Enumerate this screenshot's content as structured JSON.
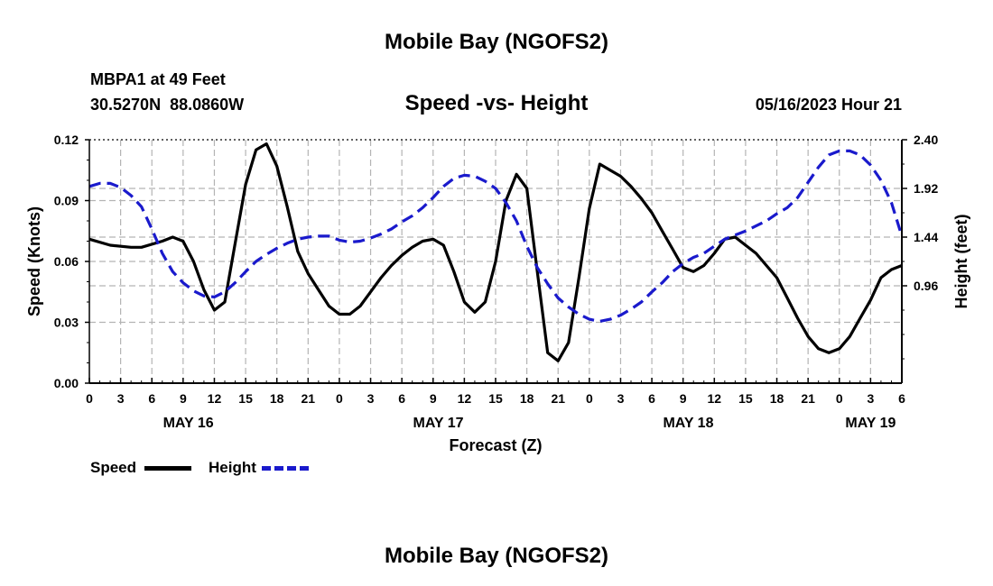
{
  "page": {
    "title": "Mobile Bay (NGOFS2)",
    "footer_title": "Mobile Bay (NGOFS2)",
    "station_line": "MBPA1 at 49 Feet",
    "coords_line": "30.5270N  88.0860W",
    "chart_subtitle": "Speed -vs- Height",
    "timestamp": "05/16/2023 Hour 21"
  },
  "legend": {
    "speed_label": "Speed",
    "height_label": "Height"
  },
  "colors": {
    "speed": "#000000",
    "height": "#1a1acc",
    "grid": "#b4b4b4"
  },
  "chart_data": {
    "type": "line",
    "title": "Speed -vs- Height",
    "xlabel": "Forecast (Z)",
    "ylabel": "Speed (Knots)",
    "y2label": "Height (feet)",
    "xlim": [
      0,
      78
    ],
    "ylim": [
      0,
      0.12
    ],
    "y2lim": [
      0,
      2.4
    ],
    "x_tick_labels": [
      "0",
      "3",
      "6",
      "9",
      "12",
      "15",
      "18",
      "21",
      "0",
      "3",
      "6",
      "9",
      "12",
      "15",
      "18",
      "21",
      "0",
      "3",
      "6",
      "9",
      "12",
      "15",
      "18",
      "21",
      "0",
      "3",
      "6"
    ],
    "day_labels": [
      {
        "label": "MAY 16",
        "x": 9.5
      },
      {
        "label": "MAY 17",
        "x": 33.5
      },
      {
        "label": "MAY 18",
        "x": 57.5
      },
      {
        "label": "MAY 19",
        "x": 75
      }
    ],
    "y_ticks": [
      "0.00",
      "0.03",
      "0.06",
      "0.09",
      "0.12"
    ],
    "y2_ticks": [
      "0.96",
      "1.44",
      "1.92",
      "2.40"
    ],
    "grid": true,
    "legend_position": "bottom-left",
    "series": [
      {
        "name": "Speed",
        "axis": "left",
        "style": "solid",
        "x": [
          0,
          2,
          4,
          5,
          7,
          8,
          9,
          10,
          11,
          12,
          13,
          14,
          15,
          16,
          17,
          18,
          19,
          20,
          21,
          22,
          23,
          24,
          25,
          26,
          27,
          28,
          29,
          30,
          31,
          32,
          33,
          34,
          35,
          36,
          37,
          38,
          39,
          40,
          41,
          42,
          43,
          44,
          45,
          46,
          47,
          48,
          49,
          50,
          51,
          52,
          53,
          54,
          55,
          56,
          57,
          58,
          59,
          60,
          61,
          62,
          63,
          64,
          65,
          66,
          67,
          68,
          69,
          70,
          71,
          72,
          73,
          74,
          75,
          76,
          77,
          78
        ],
        "values": [
          0.071,
          0.068,
          0.067,
          0.067,
          0.07,
          0.072,
          0.07,
          0.06,
          0.046,
          0.036,
          0.04,
          0.069,
          0.098,
          0.115,
          0.118,
          0.107,
          0.087,
          0.065,
          0.054,
          0.046,
          0.038,
          0.034,
          0.034,
          0.038,
          0.045,
          0.052,
          0.058,
          0.063,
          0.067,
          0.07,
          0.071,
          0.068,
          0.055,
          0.04,
          0.035,
          0.04,
          0.06,
          0.09,
          0.103,
          0.096,
          0.055,
          0.015,
          0.011,
          0.02,
          0.052,
          0.086,
          0.108,
          0.105,
          0.102,
          0.097,
          0.091,
          0.084,
          0.075,
          0.066,
          0.057,
          0.055,
          0.058,
          0.064,
          0.071,
          0.072,
          0.068,
          0.064,
          0.058,
          0.052,
          0.042,
          0.032,
          0.023,
          0.017,
          0.015,
          0.017,
          0.023,
          0.032,
          0.041,
          0.052,
          0.056,
          0.058
        ]
      },
      {
        "name": "Height",
        "axis": "right",
        "style": "dashed",
        "x": [
          0,
          1,
          2,
          3,
          4,
          5,
          6,
          7,
          8,
          9,
          10,
          11,
          12,
          13,
          14,
          15,
          16,
          17,
          18,
          19,
          20,
          21,
          22,
          23,
          24,
          25,
          26,
          27,
          28,
          29,
          30,
          31,
          32,
          33,
          34,
          35,
          36,
          37,
          38,
          39,
          40,
          41,
          42,
          43,
          44,
          45,
          46,
          47,
          48,
          49,
          50,
          51,
          52,
          53,
          54,
          55,
          56,
          57,
          58,
          59,
          60,
          61,
          62,
          63,
          64,
          65,
          66,
          67,
          68,
          69,
          70,
          71,
          72,
          73,
          74,
          75,
          76,
          77,
          78
        ],
        "values": [
          1.94,
          1.97,
          1.97,
          1.93,
          1.85,
          1.74,
          1.52,
          1.28,
          1.1,
          0.99,
          0.91,
          0.86,
          0.85,
          0.9,
          0.99,
          1.1,
          1.2,
          1.27,
          1.33,
          1.38,
          1.42,
          1.44,
          1.45,
          1.45,
          1.41,
          1.39,
          1.4,
          1.43,
          1.47,
          1.52,
          1.59,
          1.65,
          1.73,
          1.83,
          1.94,
          2.02,
          2.05,
          2.04,
          1.99,
          1.92,
          1.78,
          1.6,
          1.35,
          1.14,
          0.98,
          0.84,
          0.75,
          0.68,
          0.63,
          0.61,
          0.63,
          0.67,
          0.73,
          0.8,
          0.9,
          0.99,
          1.1,
          1.18,
          1.24,
          1.28,
          1.35,
          1.42,
          1.46,
          1.5,
          1.55,
          1.6,
          1.67,
          1.73,
          1.83,
          1.98,
          2.13,
          2.25,
          2.29,
          2.29,
          2.25,
          2.15,
          2.0,
          1.78,
          1.45
        ]
      }
    ]
  }
}
